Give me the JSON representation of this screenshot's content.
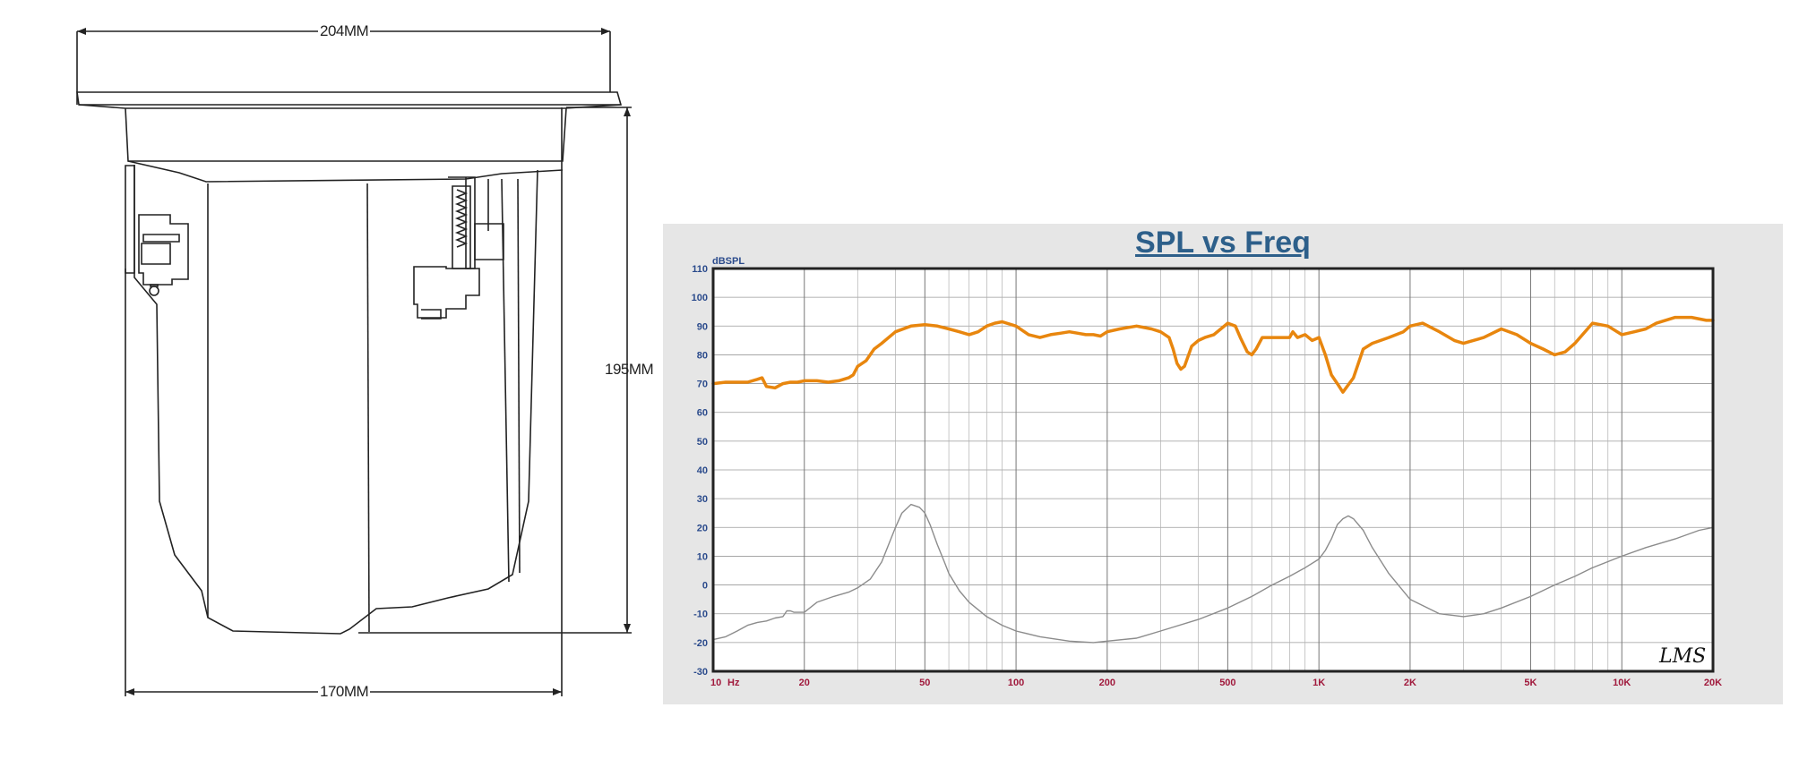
{
  "drawing": {
    "width_label": "204MM",
    "height_label": "195MM",
    "base_label": "170MM"
  },
  "chart_data": {
    "type": "line",
    "title": "SPL vs Freq",
    "y_unit_label": "dBSPL",
    "x_unit_label": "Hz",
    "x_scale": "log",
    "xlim": [
      10,
      20000
    ],
    "ylim": [
      -30,
      110
    ],
    "grid": true,
    "legend": "none",
    "logo": "LMS",
    "y_ticks": [
      "110",
      "100",
      "90",
      "80",
      "70",
      "60",
      "50",
      "40",
      "30",
      "20",
      "10",
      "0",
      "-10",
      "-20",
      "-30"
    ],
    "x_ticks": [
      {
        "v": 10,
        "label": "10"
      },
      {
        "v": 20,
        "label": "20"
      },
      {
        "v": 50,
        "label": "50"
      },
      {
        "v": 100,
        "label": "100"
      },
      {
        "v": 200,
        "label": "200"
      },
      {
        "v": 500,
        "label": "500"
      },
      {
        "v": 1000,
        "label": "1K"
      },
      {
        "v": 2000,
        "label": "2K"
      },
      {
        "v": 5000,
        "label": "5K"
      },
      {
        "v": 10000,
        "label": "10K"
      },
      {
        "v": 20000,
        "label": "20K"
      }
    ],
    "series": [
      {
        "color": "#e8860e",
        "x": [
          10,
          11,
          12,
          13,
          14,
          14.5,
          15,
          16,
          17,
          18,
          19,
          20,
          22,
          24,
          26,
          28,
          29,
          30,
          32,
          34,
          36,
          40,
          45,
          50,
          55,
          60,
          65,
          70,
          75,
          80,
          85,
          90,
          100,
          110,
          120,
          130,
          140,
          150,
          160,
          170,
          180,
          190,
          200,
          220,
          250,
          280,
          300,
          320,
          330,
          340,
          350,
          360,
          380,
          400,
          420,
          450,
          500,
          530,
          550,
          580,
          600,
          620,
          650,
          700,
          750,
          800,
          820,
          850,
          900,
          950,
          1000,
          1050,
          1100,
          1150,
          1200,
          1300,
          1400,
          1500,
          1700,
          1900,
          2000,
          2200,
          2500,
          2800,
          3000,
          3500,
          4000,
          4500,
          5000,
          5500,
          6000,
          6500,
          7000,
          8000,
          9000,
          10000,
          11000,
          12000,
          13000,
          15000,
          17000,
          19000,
          20000
        ],
        "y": [
          70,
          70.5,
          70.5,
          70.5,
          71.5,
          72,
          69,
          68.5,
          70,
          70.5,
          70.5,
          71,
          71,
          70.5,
          71,
          72,
          73,
          76,
          78,
          82,
          84,
          88,
          90,
          90.5,
          90,
          89,
          88,
          87,
          88,
          90,
          91,
          91.5,
          90,
          87,
          86,
          87,
          87.5,
          88,
          87.5,
          87,
          87,
          86.5,
          88,
          89,
          90,
          89,
          88,
          86,
          82,
          77,
          75,
          76,
          83,
          85,
          86,
          87,
          91,
          90,
          86,
          81,
          80,
          82,
          86,
          86,
          86,
          86,
          88,
          86,
          87,
          85,
          86,
          80,
          73,
          70,
          67,
          72,
          82,
          84,
          86,
          88,
          90,
          91,
          88,
          85,
          84,
          86,
          89,
          87,
          84,
          82,
          80,
          81,
          84,
          91,
          90,
          87,
          88,
          89,
          91,
          93,
          93,
          92,
          92
        ]
      },
      {
        "color": "#8c8c8c",
        "x": [
          10,
          11,
          12,
          13,
          14,
          15,
          16,
          17,
          17.5,
          18,
          18.5,
          19,
          20,
          22,
          25,
          28,
          30,
          33,
          36,
          40,
          42,
          45,
          48,
          50,
          52,
          55,
          58,
          60,
          65,
          70,
          80,
          90,
          100,
          120,
          150,
          180,
          200,
          250,
          300,
          400,
          500,
          600,
          700,
          800,
          900,
          1000,
          1050,
          1100,
          1150,
          1200,
          1250,
          1300,
          1400,
          1500,
          1700,
          2000,
          2500,
          3000,
          3500,
          4000,
          5000,
          6000,
          7000,
          8000,
          10000,
          12000,
          15000,
          18000,
          20000
        ],
        "y": [
          -19,
          -18,
          -16,
          -14,
          -13,
          -12.5,
          -11.5,
          -11,
          -9,
          -9,
          -9.5,
          -9.5,
          -9.5,
          -6,
          -4,
          -2.5,
          -1,
          2,
          8,
          20,
          25,
          28,
          27,
          25,
          21,
          14,
          8,
          4,
          -2,
          -6,
          -11,
          -14,
          -16,
          -18,
          -19.5,
          -20,
          -19.5,
          -18.5,
          -16,
          -12,
          -8,
          -4,
          0,
          3,
          6,
          9,
          12,
          16,
          21,
          23,
          24,
          23,
          19,
          13,
          4,
          -5,
          -10,
          -11,
          -10,
          -8,
          -4,
          0,
          3,
          6,
          10,
          13,
          16,
          19,
          20
        ]
      }
    ]
  }
}
